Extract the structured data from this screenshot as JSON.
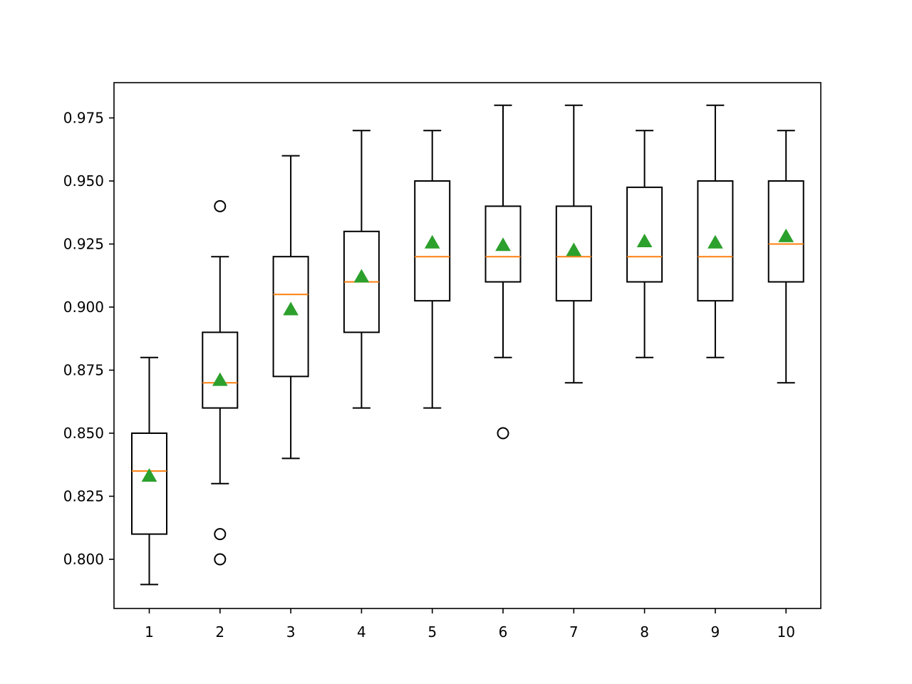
{
  "chart_data": {
    "type": "box",
    "title": "",
    "xlabel": "",
    "ylabel": "",
    "categories": [
      "1",
      "2",
      "3",
      "4",
      "5",
      "6",
      "7",
      "8",
      "9",
      "10"
    ],
    "ylim": [
      0.78,
      0.988
    ],
    "yticks": [
      0.8,
      0.825,
      0.85,
      0.875,
      0.9,
      0.925,
      0.95,
      0.975
    ],
    "ytick_labels": [
      "0.800",
      "0.825",
      "0.850",
      "0.875",
      "0.900",
      "0.925",
      "0.950",
      "0.975"
    ],
    "grid": false,
    "boxes": [
      {
        "label": "1",
        "whisker_low": 0.79,
        "q1": 0.81,
        "median": 0.835,
        "q3": 0.85,
        "whisker_high": 0.88,
        "mean": 0.833,
        "outliers": []
      },
      {
        "label": "2",
        "whisker_low": 0.83,
        "q1": 0.86,
        "median": 0.87,
        "q3": 0.89,
        "whisker_high": 0.92,
        "mean": 0.871,
        "outliers": [
          0.94,
          0.81,
          0.8
        ]
      },
      {
        "label": "3",
        "whisker_low": 0.84,
        "q1": 0.8725,
        "median": 0.905,
        "q3": 0.92,
        "whisker_high": 0.96,
        "mean": 0.899,
        "outliers": []
      },
      {
        "label": "4",
        "whisker_low": 0.86,
        "q1": 0.89,
        "median": 0.91,
        "q3": 0.93,
        "whisker_high": 0.97,
        "mean": 0.912,
        "outliers": []
      },
      {
        "label": "5",
        "whisker_low": 0.86,
        "q1": 0.9025,
        "median": 0.92,
        "q3": 0.95,
        "whisker_high": 0.97,
        "mean": 0.9255,
        "outliers": []
      },
      {
        "label": "6",
        "whisker_low": 0.88,
        "q1": 0.91,
        "median": 0.92,
        "q3": 0.94,
        "whisker_high": 0.98,
        "mean": 0.9245,
        "outliers": [
          0.85
        ]
      },
      {
        "label": "7",
        "whisker_low": 0.87,
        "q1": 0.9025,
        "median": 0.92,
        "q3": 0.94,
        "whisker_high": 0.98,
        "mean": 0.9225,
        "outliers": []
      },
      {
        "label": "8",
        "whisker_low": 0.88,
        "q1": 0.91,
        "median": 0.92,
        "q3": 0.9475,
        "whisker_high": 0.97,
        "mean": 0.926,
        "outliers": []
      },
      {
        "label": "9",
        "whisker_low": 0.88,
        "q1": 0.9025,
        "median": 0.92,
        "q3": 0.95,
        "whisker_high": 0.98,
        "mean": 0.9255,
        "outliers": []
      },
      {
        "label": "10",
        "whisker_low": 0.87,
        "q1": 0.91,
        "median": 0.925,
        "q3": 0.95,
        "whisker_high": 0.97,
        "mean": 0.928,
        "outliers": []
      }
    ],
    "colors": {
      "box": "#000000",
      "median": "#ff7f0e",
      "mean_marker": "#2ca02c",
      "axes": "#000000",
      "background": "#ffffff"
    }
  }
}
